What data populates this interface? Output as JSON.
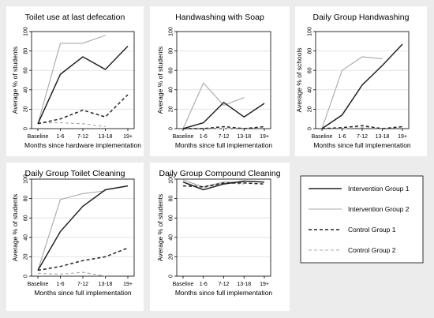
{
  "figure": {
    "background": "#ececec",
    "panel_background": "#ffffff",
    "frame_color": "#000000",
    "gridline_color": "#e3e3e3"
  },
  "series_styles": [
    {
      "name": "Intervention Group 1",
      "color": "#222222",
      "dash": "solid",
      "weight": "heavy"
    },
    {
      "name": "Intervention Group 2",
      "color": "#a8a8a8",
      "dash": "solid",
      "weight": "light"
    },
    {
      "name": "Control Group 1",
      "color": "#222222",
      "dash": "dashed",
      "weight": "heavy"
    },
    {
      "name": "Control Group 2",
      "color": "#a8a8a8",
      "dash": "dashed",
      "weight": "light"
    }
  ],
  "legend": {
    "placement": "bottom-right",
    "entries": [
      "Intervention Group 1",
      "Intervention Group 2",
      "Control Group 1",
      "Control Group 2"
    ]
  },
  "chart_data": [
    {
      "type": "line",
      "title": "Toilet use at last defecation",
      "xlabel": "Months since hardware implementation",
      "ylabel": "Average % of students",
      "categories": [
        "Baseline",
        "1-6",
        "7-12",
        "13-18",
        "19+"
      ],
      "yticks": [
        0,
        20,
        40,
        60,
        80,
        100
      ],
      "ylim": [
        0,
        100
      ],
      "grid": true,
      "series": [
        {
          "name": "Intervention Group 1",
          "values": [
            5,
            56,
            74,
            61,
            85
          ]
        },
        {
          "name": "Intervention Group 2",
          "values": [
            5,
            88,
            88,
            96,
            null
          ]
        },
        {
          "name": "Control Group 1",
          "values": [
            5,
            10,
            19,
            12,
            35
          ]
        },
        {
          "name": "Control Group 2",
          "values": [
            6,
            6,
            5,
            2,
            null
          ]
        }
      ]
    },
    {
      "type": "line",
      "title": "Handwashing with Soap",
      "xlabel": "Months since full implementation",
      "ylabel": "Average % of students",
      "categories": [
        "Baseline",
        "1-6",
        "7-12",
        "13-18",
        "19+"
      ],
      "yticks": [
        0,
        20,
        40,
        60,
        80,
        100
      ],
      "ylim": [
        0,
        100
      ],
      "grid": true,
      "series": [
        {
          "name": "Intervention Group 1",
          "values": [
            0,
            6,
            27,
            12,
            26
          ]
        },
        {
          "name": "Intervention Group 2",
          "values": [
            0,
            47,
            24,
            32,
            null
          ]
        },
        {
          "name": "Control Group 1",
          "values": [
            0,
            0,
            2,
            0,
            2
          ]
        },
        {
          "name": "Control Group 2",
          "values": [
            0,
            0,
            0,
            0,
            null
          ]
        }
      ]
    },
    {
      "type": "line",
      "title": "Daily Group Handwashing",
      "xlabel": "Months since full implementation",
      "ylabel": "Average % of schools",
      "categories": [
        "Baseline",
        "1-6",
        "7-12",
        "13-18",
        "19+"
      ],
      "yticks": [
        0,
        20,
        40,
        60,
        80,
        100
      ],
      "ylim": [
        0,
        100
      ],
      "grid": true,
      "series": [
        {
          "name": "Intervention Group 1",
          "values": [
            0,
            14,
            45,
            65,
            87
          ]
        },
        {
          "name": "Intervention Group 2",
          "values": [
            0,
            60,
            74,
            72,
            null
          ]
        },
        {
          "name": "Control Group 1",
          "values": [
            0,
            1,
            3,
            0,
            2
          ]
        },
        {
          "name": "Control Group 2",
          "values": [
            0,
            0,
            1,
            0,
            null
          ]
        }
      ]
    },
    {
      "type": "line",
      "title": "Daily Group Toilet Cleaning",
      "xlabel": "Months since full implementation",
      "ylabel": "Average % of students",
      "categories": [
        "Baseline",
        "1-6",
        "7-12",
        "13-18",
        "19+"
      ],
      "yticks": [
        0,
        20,
        40,
        60,
        80,
        100
      ],
      "ylim": [
        0,
        100
      ],
      "grid": true,
      "series": [
        {
          "name": "Intervention Group 1",
          "values": [
            6,
            46,
            72,
            89,
            93
          ]
        },
        {
          "name": "Intervention Group 2",
          "values": [
            6,
            79,
            85,
            88,
            null
          ]
        },
        {
          "name": "Control Group 1",
          "values": [
            6,
            10,
            16,
            20,
            29
          ]
        },
        {
          "name": "Control Group 2",
          "values": [
            3,
            2,
            4,
            0,
            null
          ]
        }
      ]
    },
    {
      "type": "line",
      "title": "Daily Group Compound Cleaning",
      "xlabel": "Months since full implementation",
      "ylabel": "Average % of students",
      "categories": [
        "Baseline",
        "1-6",
        "7-12",
        "13-18",
        "19+"
      ],
      "yticks": [
        0,
        20,
        40,
        60,
        80,
        100
      ],
      "ylim": [
        0,
        100
      ],
      "grid": true,
      "series": [
        {
          "name": "Intervention Group 1",
          "values": [
            97,
            89,
            95,
            98,
            97
          ]
        },
        {
          "name": "Intervention Group 2",
          "values": [
            99,
            92,
            97,
            97,
            null
          ]
        },
        {
          "name": "Control Group 1",
          "values": [
            93,
            92,
            96,
            96,
            95
          ]
        },
        {
          "name": "Control Group 2",
          "values": [
            97,
            91,
            96,
            95,
            null
          ]
        }
      ]
    }
  ]
}
